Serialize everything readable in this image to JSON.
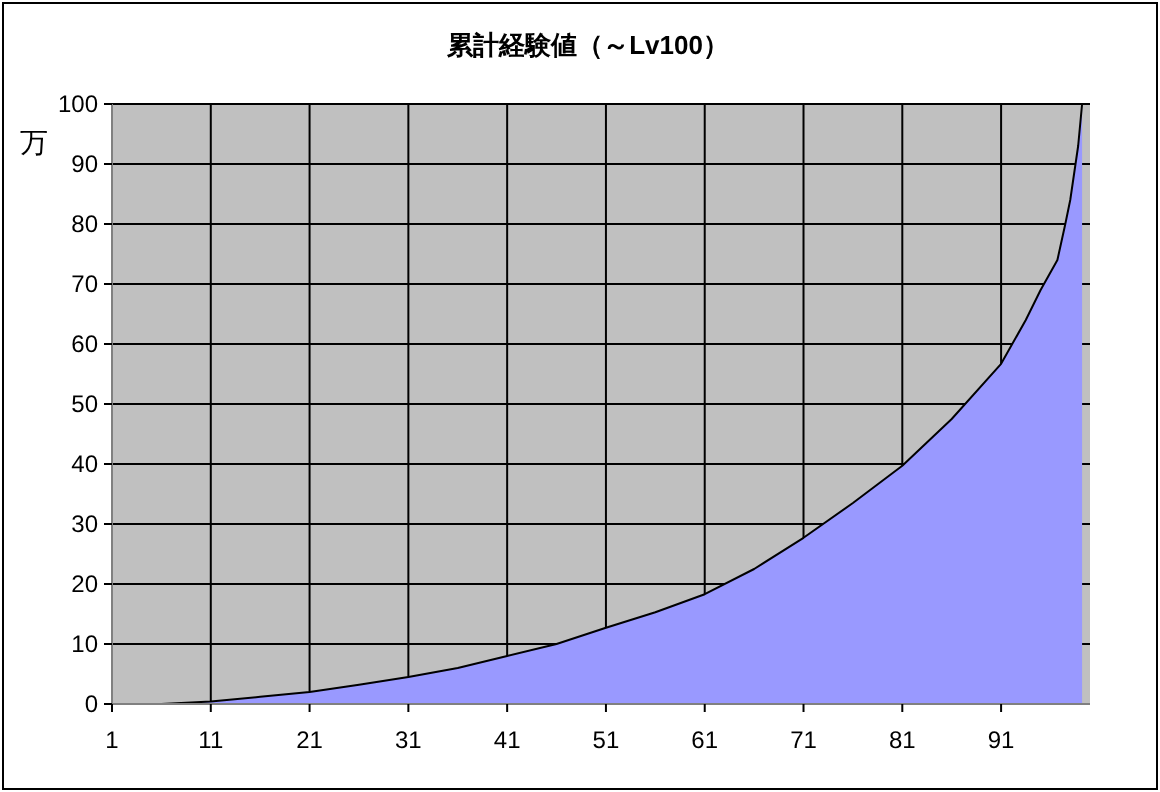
{
  "chart_data": {
    "type": "area",
    "title": "累計経験値（～Lv100）",
    "ylabel": "万",
    "series": [
      {
        "color": "#9999ff",
        "x": [
          6,
          11,
          16,
          21,
          26,
          31,
          36,
          41,
          46,
          51,
          56,
          61,
          66,
          71,
          76,
          81,
          86,
          91,
          93.5,
          95,
          96.7,
          97.5,
          98,
          98.8,
          99.2
        ],
        "values": [
          0,
          0.4,
          1.2,
          2,
          3.2,
          4.5,
          6,
          8,
          10,
          12.7,
          15.3,
          18.3,
          22.5,
          27.7,
          33.5,
          39.7,
          47.5,
          56.7,
          64,
          69,
          74,
          80,
          84,
          93,
          100
        ]
      }
    ],
    "xlim": [
      1,
      100
    ],
    "xticks": [
      1,
      11,
      21,
      31,
      41,
      51,
      61,
      71,
      81,
      91
    ],
    "ylim": [
      0,
      100
    ],
    "yticks": [
      0,
      10,
      20,
      30,
      40,
      50,
      60,
      70,
      80,
      90,
      100
    ],
    "grid": true
  }
}
